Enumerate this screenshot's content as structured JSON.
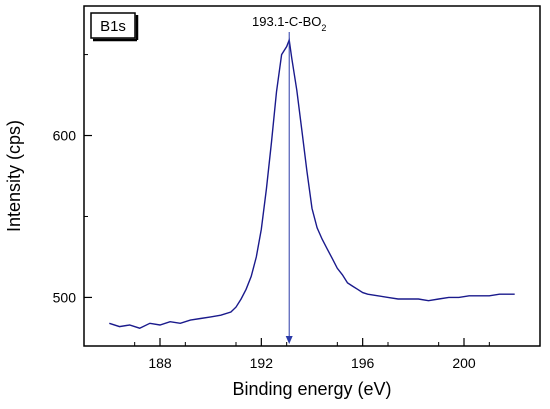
{
  "chart_data": {
    "type": "line",
    "tag": "B1s",
    "xlabel": "Binding energy (eV)",
    "ylabel": "Intensity (cps)",
    "xlim": [
      185,
      203
    ],
    "ylim": [
      470,
      680
    ],
    "xticks": [
      188,
      192,
      196,
      200
    ],
    "yticks": [
      500,
      600
    ],
    "annotation": {
      "base": "193.1-C-BO",
      "subscript": "2",
      "x": 193.1
    },
    "colors": {
      "line": "#1a1a8c",
      "marker": "#2b3aa8"
    },
    "series": [
      {
        "x": [
          186.0,
          186.4,
          186.8,
          187.2,
          187.6,
          188.0,
          188.4,
          188.8,
          189.2,
          189.6,
          190.0,
          190.4,
          190.8,
          191.0,
          191.2,
          191.4,
          191.6,
          191.8,
          192.0,
          192.2,
          192.4,
          192.6,
          192.8,
          193.0,
          193.1,
          193.2,
          193.4,
          193.6,
          193.8,
          194.0,
          194.2,
          194.4,
          194.6,
          194.8,
          195.0,
          195.2,
          195.4,
          195.6,
          195.8,
          196.0,
          196.2,
          196.6,
          197.0,
          197.4,
          197.8,
          198.2,
          198.6,
          199.0,
          199.4,
          199.8,
          200.2,
          200.6,
          201.0,
          201.4,
          201.8,
          202.0
        ],
        "y": [
          484,
          482,
          483,
          481,
          484,
          483,
          485,
          484,
          486,
          487,
          488,
          489,
          491,
          494,
          499,
          505,
          513,
          525,
          542,
          567,
          596,
          627,
          650,
          655,
          659,
          648,
          628,
          603,
          578,
          555,
          543,
          536,
          530,
          524,
          518,
          514,
          509,
          507,
          505,
          503,
          502,
          501,
          500,
          499,
          499,
          499,
          498,
          499,
          500,
          500,
          501,
          501,
          501,
          502,
          502,
          502
        ]
      }
    ]
  }
}
